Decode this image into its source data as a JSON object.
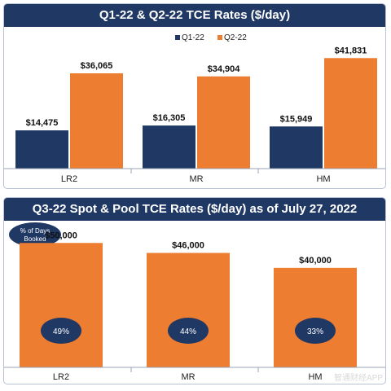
{
  "colors": {
    "navy": "#1f3864",
    "orange": "#ed7d31",
    "axis": "#9aa3b5"
  },
  "watermark": "智通财经APP",
  "chart_data": [
    {
      "type": "bar",
      "title": "Q1-22 & Q2-22 TCE Rates ($/day)",
      "categories": [
        "LR2",
        "MR",
        "HM"
      ],
      "series": [
        {
          "name": "Q1-22",
          "color": "#1f3864",
          "values": [
            14475,
            16305,
            15949
          ],
          "labels": [
            "$14,475",
            "$16,305",
            "$15,949"
          ]
        },
        {
          "name": "Q2-22",
          "color": "#ed7d31",
          "values": [
            36065,
            34904,
            41831
          ],
          "labels": [
            "$36,065",
            "$34,904",
            "$41,831"
          ]
        }
      ],
      "ylim": [
        0,
        45000
      ],
      "legend": "top-center",
      "grid": false
    },
    {
      "type": "bar",
      "title": "Q3-22 Spot & Pool TCE Rates ($/day) as of July 27, 2022",
      "categories": [
        "LR2",
        "MR",
        "HM"
      ],
      "series": [
        {
          "color": "#ed7d31",
          "values": [
            50000,
            46000,
            40000
          ],
          "labels": [
            "$50,000",
            "$46,000",
            "$40,000"
          ]
        }
      ],
      "booked_pct": [
        "49%",
        "44%",
        "33%"
      ],
      "badge_lines": [
        "% of Days",
        "Booked"
      ],
      "ylim": [
        0,
        55000
      ],
      "legend": "none",
      "grid": false
    }
  ]
}
